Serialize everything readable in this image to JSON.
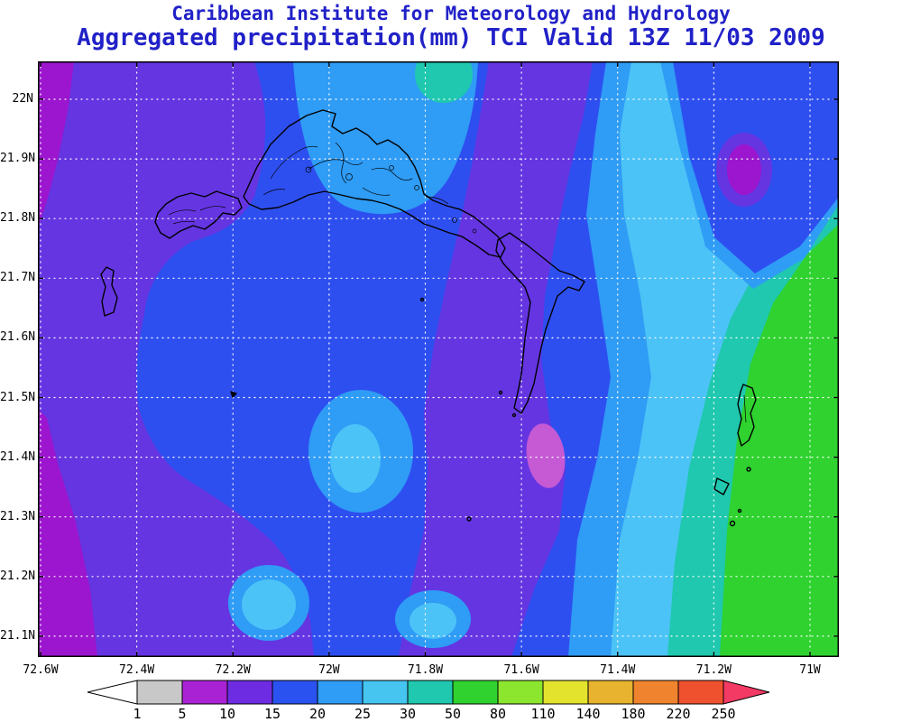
{
  "header": {
    "line1": "Caribbean Institute for Meteorology and Hydrology",
    "line2": "Aggregated precipitation(mm) TCI Valid 13Z 11/03 2009",
    "title_color": "#2121c8"
  },
  "map": {
    "lat_labels": [
      "22N",
      "21.9N",
      "21.8N",
      "21.7N",
      "21.6N",
      "21.5N",
      "21.4N",
      "21.3N",
      "21.2N",
      "21.1N"
    ],
    "lon_labels": [
      "72.6W",
      "72.4W",
      "72.2W",
      "72W",
      "71.8W",
      "71.6W",
      "71.4W",
      "71.2W",
      "71W"
    ],
    "gridline_color": "#ffffff",
    "coastline_color": "#000000",
    "palette": {
      "blue": "#2e4ff0",
      "violet": "#6535e2",
      "magenta": "#9b16ce",
      "pink": "#c55ad4",
      "lightblue": "#2f9cf5",
      "cyan": "#4cc3f7",
      "teal": "#1fc8ae",
      "green": "#2fd22f"
    }
  },
  "colorbar": {
    "tick_labels": [
      "1",
      "5",
      "10",
      "15",
      "20",
      "25",
      "30",
      "50",
      "80",
      "110",
      "140",
      "180",
      "220",
      "250"
    ],
    "left_arrow": {
      "range": "<1",
      "color": "#ffffff"
    },
    "segments": [
      {
        "range": "1-5",
        "color": "#c8c8c8"
      },
      {
        "range": "5-10",
        "color": "#a923d4"
      },
      {
        "range": "10-15",
        "color": "#6d2be2"
      },
      {
        "range": "15-20",
        "color": "#2a52f0"
      },
      {
        "range": "20-25",
        "color": "#2f9cf5"
      },
      {
        "range": "25-30",
        "color": "#45c5f0"
      },
      {
        "range": "30-50",
        "color": "#1fc8ae"
      },
      {
        "range": "50-80",
        "color": "#2fd22f"
      },
      {
        "range": "80-110",
        "color": "#8ce62e"
      },
      {
        "range": "110-140",
        "color": "#e3e32e"
      },
      {
        "range": "140-180",
        "color": "#e8b32e"
      },
      {
        "range": "180-220",
        "color": "#f0832e"
      },
      {
        "range": "220-250",
        "color": "#ef512e"
      }
    ],
    "right_arrow": {
      "range": ">250",
      "color": "#f23a64"
    }
  }
}
